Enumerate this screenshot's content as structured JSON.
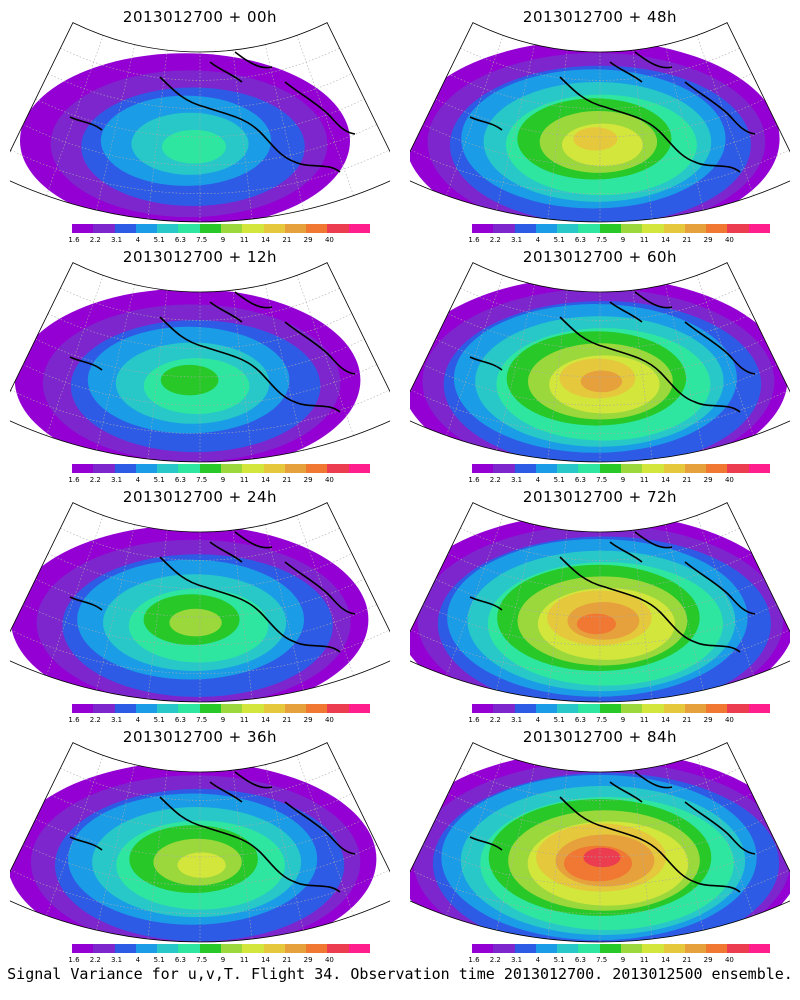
{
  "palette": [
    "#9400d3",
    "#7d26cd",
    "#2e5be6",
    "#1a9de6",
    "#28c8c8",
    "#2ee6a0",
    "#28c828",
    "#9bd83c",
    "#d2e63c",
    "#e6c83c",
    "#e6a03c",
    "#f07832",
    "#eb3c50",
    "#ff1e8c"
  ],
  "land_color": "#000000",
  "grid_color": "#aaaaaa",
  "colorbar_ticks": [
    "1.6",
    "2.2",
    "3.1",
    "4",
    "5.1",
    "6.3",
    "7.5",
    "9",
    "11",
    "14",
    "21",
    "29",
    "40"
  ],
  "panels": [
    {
      "title": "2013012700 + 00h",
      "intensity": 0.25
    },
    {
      "title": "2013012700 + 48h",
      "intensity": 0.62
    },
    {
      "title": "2013012700 + 12h",
      "intensity": 0.38
    },
    {
      "title": "2013012700 + 60h",
      "intensity": 0.72
    },
    {
      "title": "2013012700 + 24h",
      "intensity": 0.48
    },
    {
      "title": "2013012700 + 72h",
      "intensity": 0.82
    },
    {
      "title": "2013012700 + 36h",
      "intensity": 0.58
    },
    {
      "title": "2013012700 + 84h",
      "intensity": 0.9
    }
  ],
  "footer": "Signal Variance for u,v,T. Flight 34. Observation time 2013012700. 2013012500 ensemble."
}
